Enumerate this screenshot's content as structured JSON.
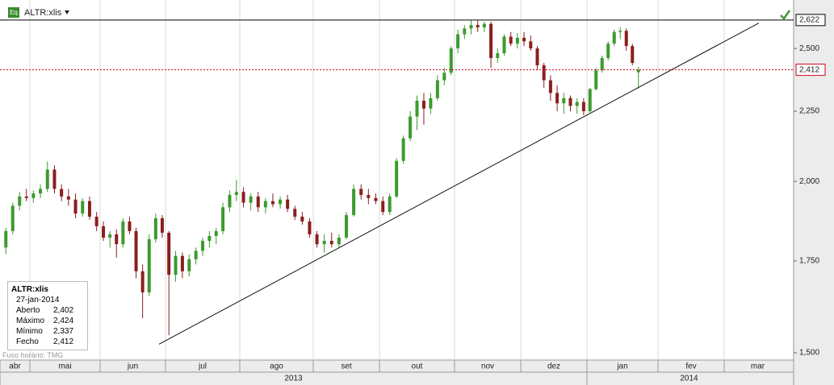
{
  "chart_data": {
    "type": "candlestick",
    "title": "ALTR:xlis",
    "log": true,
    "grid": true,
    "up_color": "#3c9a2e",
    "down_color": "#8b1e1e",
    "ylim": [
      1480,
      2650
    ],
    "yticks": [
      {
        "value": 1500,
        "label": "1,500"
      },
      {
        "value": 1750,
        "label": "1,750"
      },
      {
        "value": 2000,
        "label": "2,000"
      },
      {
        "value": 2250,
        "label": "2,250"
      },
      {
        "value": 2500,
        "label": "2,500"
      }
    ],
    "levels": [
      {
        "value": 2622,
        "label": "2,622",
        "color": "#000000"
      },
      {
        "value": 2412,
        "label": "2,412",
        "color": "#d0021b"
      }
    ],
    "trendline": [
      1522,
      2609
    ],
    "years": [
      "2013",
      "2014"
    ],
    "months": [
      {
        "label": "abr",
        "candles": [
          [
            1790,
            1850,
            1770,
            1840
          ],
          [
            1840,
            1930,
            1830,
            1920
          ],
          [
            1920,
            1965,
            1905,
            1950
          ],
          [
            1950,
            1975,
            1935,
            1945
          ]
        ]
      },
      {
        "label": "mai",
        "candles": [
          [
            1945,
            1970,
            1930,
            1960
          ],
          [
            1960,
            1990,
            1945,
            1975
          ],
          [
            1975,
            2068,
            1965,
            2040
          ],
          [
            2040,
            2055,
            1960,
            1975
          ],
          [
            1975,
            1990,
            1935,
            1950
          ],
          [
            1950,
            1975,
            1920,
            1940
          ],
          [
            1940,
            1960,
            1880,
            1895
          ],
          [
            1895,
            1945,
            1885,
            1935
          ],
          [
            1935,
            1950,
            1875,
            1885
          ],
          [
            1885,
            1900,
            1840,
            1855
          ]
        ]
      },
      {
        "label": "jun",
        "candles": [
          [
            1855,
            1870,
            1810,
            1820
          ],
          [
            1820,
            1840,
            1790,
            1830
          ],
          [
            1830,
            1845,
            1760,
            1800
          ],
          [
            1800,
            1880,
            1790,
            1870
          ],
          [
            1870,
            1885,
            1830,
            1840
          ],
          [
            1840,
            1850,
            1700,
            1720
          ],
          [
            1720,
            1740,
            1590,
            1660
          ],
          [
            1660,
            1830,
            1650,
            1815
          ],
          [
            1815,
            1895,
            1805,
            1880
          ],
          [
            1880,
            1890,
            1820,
            1835
          ]
        ]
      },
      {
        "label": "jul",
        "candles": [
          [
            1835,
            1840,
            1545,
            1710
          ],
          [
            1710,
            1780,
            1690,
            1765
          ],
          [
            1765,
            1775,
            1700,
            1720
          ],
          [
            1720,
            1770,
            1705,
            1755
          ],
          [
            1755,
            1790,
            1740,
            1780
          ],
          [
            1780,
            1820,
            1765,
            1810
          ],
          [
            1810,
            1840,
            1790,
            1825
          ],
          [
            1825,
            1850,
            1800,
            1840
          ],
          [
            1840,
            1930,
            1830,
            1915
          ],
          [
            1915,
            1970,
            1900,
            1955
          ],
          [
            1955,
            2005,
            1935,
            1965
          ]
        ]
      },
      {
        "label": "ago",
        "candles": [
          [
            1965,
            1980,
            1915,
            1930
          ],
          [
            1930,
            1960,
            1905,
            1950
          ],
          [
            1950,
            1965,
            1900,
            1915
          ],
          [
            1915,
            1945,
            1895,
            1935
          ],
          [
            1935,
            1960,
            1915,
            1925
          ],
          [
            1925,
            1950,
            1910,
            1940
          ],
          [
            1940,
            1955,
            1900,
            1910
          ],
          [
            1910,
            1920,
            1875,
            1885
          ],
          [
            1885,
            1900,
            1860,
            1870
          ],
          [
            1870,
            1880,
            1820,
            1830
          ]
        ]
      },
      {
        "label": "set",
        "candles": [
          [
            1830,
            1840,
            1790,
            1800
          ],
          [
            1800,
            1830,
            1775,
            1810
          ],
          [
            1810,
            1835,
            1790,
            1800
          ],
          [
            1800,
            1830,
            1790,
            1820
          ],
          [
            1820,
            1900,
            1815,
            1890
          ],
          [
            1890,
            1990,
            1885,
            1975
          ],
          [
            1975,
            1990,
            1940,
            1955
          ],
          [
            1955,
            1975,
            1925,
            1945
          ],
          [
            1945,
            1960,
            1925,
            1935
          ]
        ]
      },
      {
        "label": "out",
        "candles": [
          [
            1935,
            1950,
            1890,
            1900
          ],
          [
            1900,
            1960,
            1890,
            1950
          ],
          [
            1950,
            2080,
            1945,
            2070
          ],
          [
            2070,
            2160,
            2060,
            2150
          ],
          [
            2150,
            2250,
            2140,
            2230
          ],
          [
            2230,
            2310,
            2180,
            2290
          ],
          [
            2290,
            2320,
            2200,
            2260
          ],
          [
            2260,
            2320,
            2240,
            2300
          ],
          [
            2300,
            2390,
            2290,
            2370
          ],
          [
            2370,
            2420,
            2350,
            2400
          ],
          [
            2400,
            2510,
            2390,
            2500
          ]
        ]
      },
      {
        "label": "nov",
        "candles": [
          [
            2500,
            2580,
            2480,
            2560
          ],
          [
            2560,
            2600,
            2540,
            2585
          ],
          [
            2585,
            2622,
            2560,
            2600
          ],
          [
            2600,
            2620,
            2570,
            2590
          ],
          [
            2590,
            2615,
            2570,
            2605
          ],
          [
            2605,
            2615,
            2420,
            2460
          ],
          [
            2460,
            2500,
            2440,
            2480
          ],
          [
            2480,
            2560,
            2470,
            2550
          ],
          [
            2550,
            2570,
            2510,
            2520
          ],
          [
            2520,
            2565,
            2500,
            2545
          ]
        ]
      },
      {
        "label": "dez",
        "candles": [
          [
            2545,
            2570,
            2510,
            2530
          ],
          [
            2530,
            2555,
            2490,
            2500
          ],
          [
            2500,
            2510,
            2410,
            2430
          ],
          [
            2430,
            2440,
            2340,
            2370
          ],
          [
            2370,
            2390,
            2290,
            2320
          ],
          [
            2320,
            2350,
            2250,
            2280
          ],
          [
            2280,
            2320,
            2240,
            2300
          ],
          [
            2300,
            2310,
            2250,
            2270
          ],
          [
            2270,
            2300,
            2240,
            2285
          ],
          [
            2285,
            2300,
            2235,
            2250
          ]
        ]
      },
      {
        "label": "jan",
        "candles": [
          [
            2250,
            2340,
            2245,
            2335
          ],
          [
            2335,
            2420,
            2330,
            2410
          ],
          [
            2410,
            2470,
            2400,
            2460
          ],
          [
            2460,
            2530,
            2450,
            2520
          ],
          [
            2520,
            2580,
            2510,
            2570
          ],
          [
            2570,
            2590,
            2540,
            2575
          ],
          [
            2575,
            2585,
            2490,
            2510
          ],
          [
            2510,
            2520,
            2430,
            2440
          ],
          [
            2402,
            2424,
            2337,
            2412
          ]
        ]
      },
      {
        "label": "fev",
        "candles": []
      },
      {
        "label": "mar",
        "candles": []
      }
    ],
    "info": {
      "symbol": "ALTR:xlis",
      "date": "27-jan-2014",
      "rows": [
        [
          "Aberto",
          "2,402"
        ],
        [
          "Máximo",
          "2,424"
        ],
        [
          "Mínimo",
          "2,337"
        ],
        [
          "Fecho",
          "2,412"
        ]
      ]
    },
    "timezone": "Fuso horário: TMG"
  }
}
